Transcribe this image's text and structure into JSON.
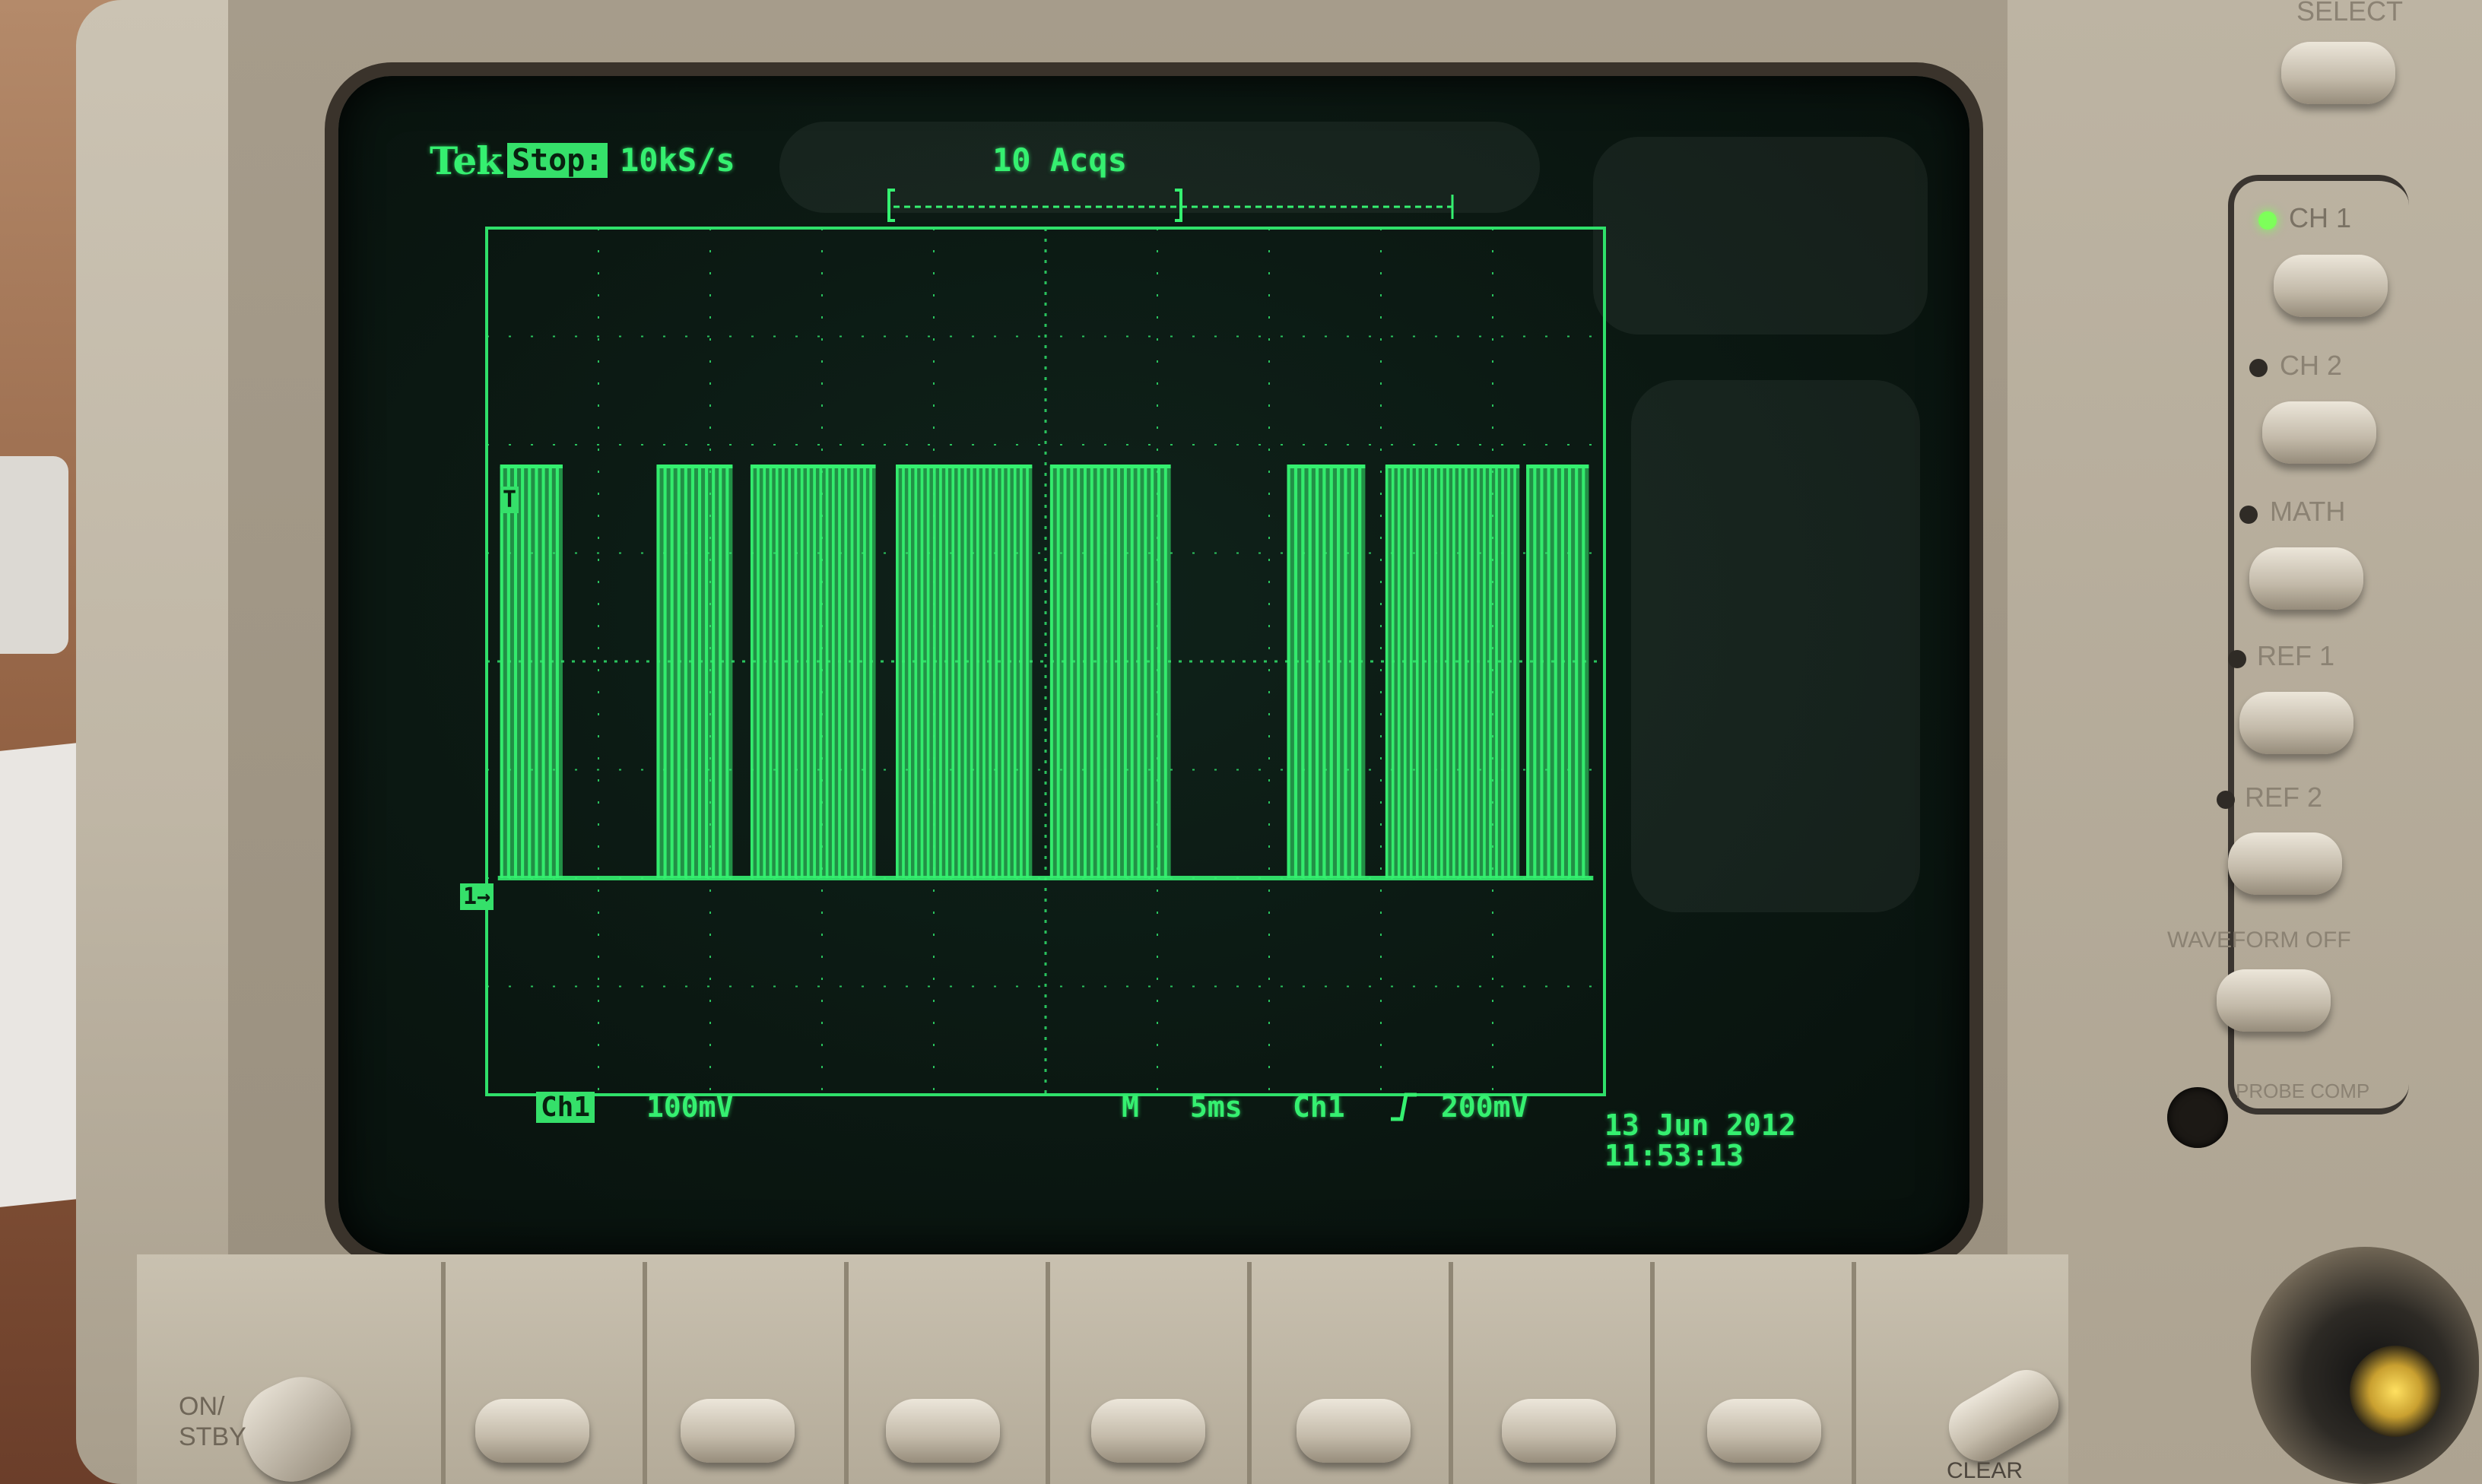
{
  "scope": {
    "brand": "Tek",
    "run_state": "Stop:",
    "sample_rate": "10kS/s",
    "acquisitions": "10 Acqs",
    "trigger_marker": "T",
    "ground_marker": "1→",
    "channel_label": "Ch1",
    "channel_scale": "100mV",
    "timebase_prefix": "M",
    "timebase": "5ms",
    "trigger_source": "Ch1",
    "trigger_slope_icon": "rising-edge-icon",
    "trigger_level": "200mV",
    "date": "13 Jun 2012",
    "time": "11:53:13",
    "trace_color": "#35f070",
    "grid_color": "#2fe06a"
  },
  "panel": {
    "select_label": "SELECT",
    "ch1_label": "CH 1",
    "ch2_label": "CH 2",
    "math_label": "MATH",
    "ref1_label": "REF 1",
    "ref2_label": "REF 2",
    "waveform_off_label": "WAVEFORM OFF",
    "probe_comp_label": "PROBE COMP",
    "power_label": "ON/\nSTBY",
    "clear_label": "CLEAR"
  },
  "signal": {
    "description_units": "ms",
    "low_level_div": -2.0,
    "high_level_div": 1.8,
    "bursts": [
      {
        "start_ms": 0.6,
        "end_ms": 3.4,
        "pulses": 9
      },
      {
        "start_ms": 7.6,
        "end_ms": 11.0,
        "pulses": 11
      },
      {
        "start_ms": 11.8,
        "end_ms": 17.4,
        "pulses": 20
      },
      {
        "start_ms": 18.3,
        "end_ms": 24.4,
        "pulses": 22
      },
      {
        "start_ms": 25.2,
        "end_ms": 30.6,
        "pulses": 18
      },
      {
        "start_ms": 35.8,
        "end_ms": 39.3,
        "pulses": 11
      },
      {
        "start_ms": 40.2,
        "end_ms": 46.2,
        "pulses": 22
      },
      {
        "start_ms": 46.5,
        "end_ms": 49.3,
        "pulses": 9
      }
    ]
  }
}
